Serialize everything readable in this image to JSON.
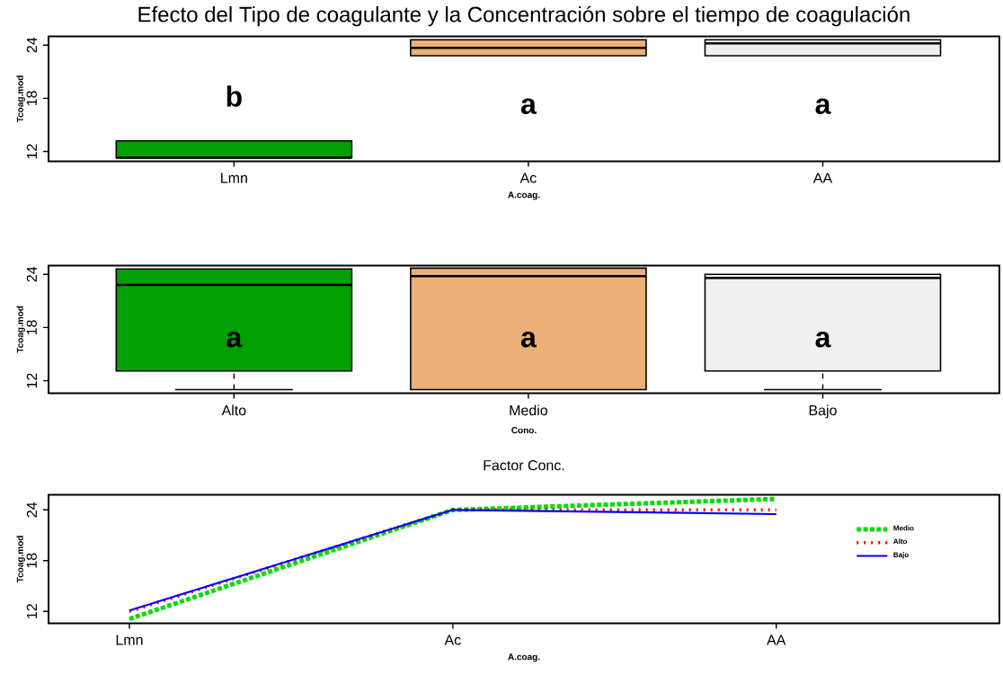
{
  "chart_data": [
    {
      "type": "box",
      "title": "Efecto del Tipo de coagulante y la Concentración sobre el tiempo de coagulación",
      "xlabel": "A.coag.",
      "ylabel": "Tcoag.mod",
      "categories": [
        "Lmn",
        "Ac",
        "AA"
      ],
      "boxes": [
        {
          "low": 11.3,
          "q1": 11.3,
          "median": 11.3,
          "q3": 13.2,
          "high": 13.2
        },
        {
          "low": 22.8,
          "q1": 22.8,
          "median": 23.7,
          "q3": 24.6,
          "high": 24.6
        },
        {
          "low": 22.8,
          "q1": 22.8,
          "median": 24.2,
          "q3": 24.6,
          "high": 24.6
        }
      ],
      "colors": [
        "#00a000",
        "#eab077",
        "#f0f0f0"
      ],
      "ylim": [
        10.9,
        25
      ],
      "yticks": [
        12,
        18,
        24
      ],
      "annotations": [
        "b",
        "a",
        "a"
      ]
    },
    {
      "type": "box",
      "xlabel": "Cono.",
      "ylabel": "Tcoag.mod",
      "categories": [
        "Alto",
        "Medio",
        "Bajo"
      ],
      "boxes": [
        {
          "low": 11.0,
          "q1": 13.1,
          "median": 22.8,
          "q3": 24.6,
          "high": 24.6
        },
        {
          "low": 11.0,
          "q1": 11.0,
          "median": 23.8,
          "q3": 24.7,
          "high": 24.7
        },
        {
          "low": 11.0,
          "q1": 13.1,
          "median": 23.6,
          "q3": 24.0,
          "high": 24.0
        }
      ],
      "colors": [
        "#00a000",
        "#eab077",
        "#f0f0f0"
      ],
      "ylim": [
        10.6,
        25
      ],
      "yticks": [
        12,
        18,
        24
      ],
      "annotations": [
        "a",
        "a",
        "a"
      ]
    },
    {
      "type": "line",
      "title": "Factor Conc.",
      "xlabel": "A.coag.",
      "ylabel": "Tcoag.mod",
      "categories": [
        "Lmn",
        "Ac",
        "AA"
      ],
      "series": [
        {
          "name": "Medio",
          "color": "#00dd00",
          "line_style": "dashed",
          "values": [
            11.1,
            24.0,
            25.3
          ]
        },
        {
          "name": "Alto",
          "color": "#ff0000",
          "line_style": "dotted",
          "values": [
            12.0,
            24.0,
            24.0
          ]
        },
        {
          "name": "Bajo",
          "color": "#0000ff",
          "line_style": "solid",
          "values": [
            12.1,
            24.0,
            23.5
          ]
        }
      ],
      "legend": "right",
      "ylim": [
        10.6,
        25.8
      ],
      "yticks": [
        12,
        18,
        24
      ]
    }
  ]
}
